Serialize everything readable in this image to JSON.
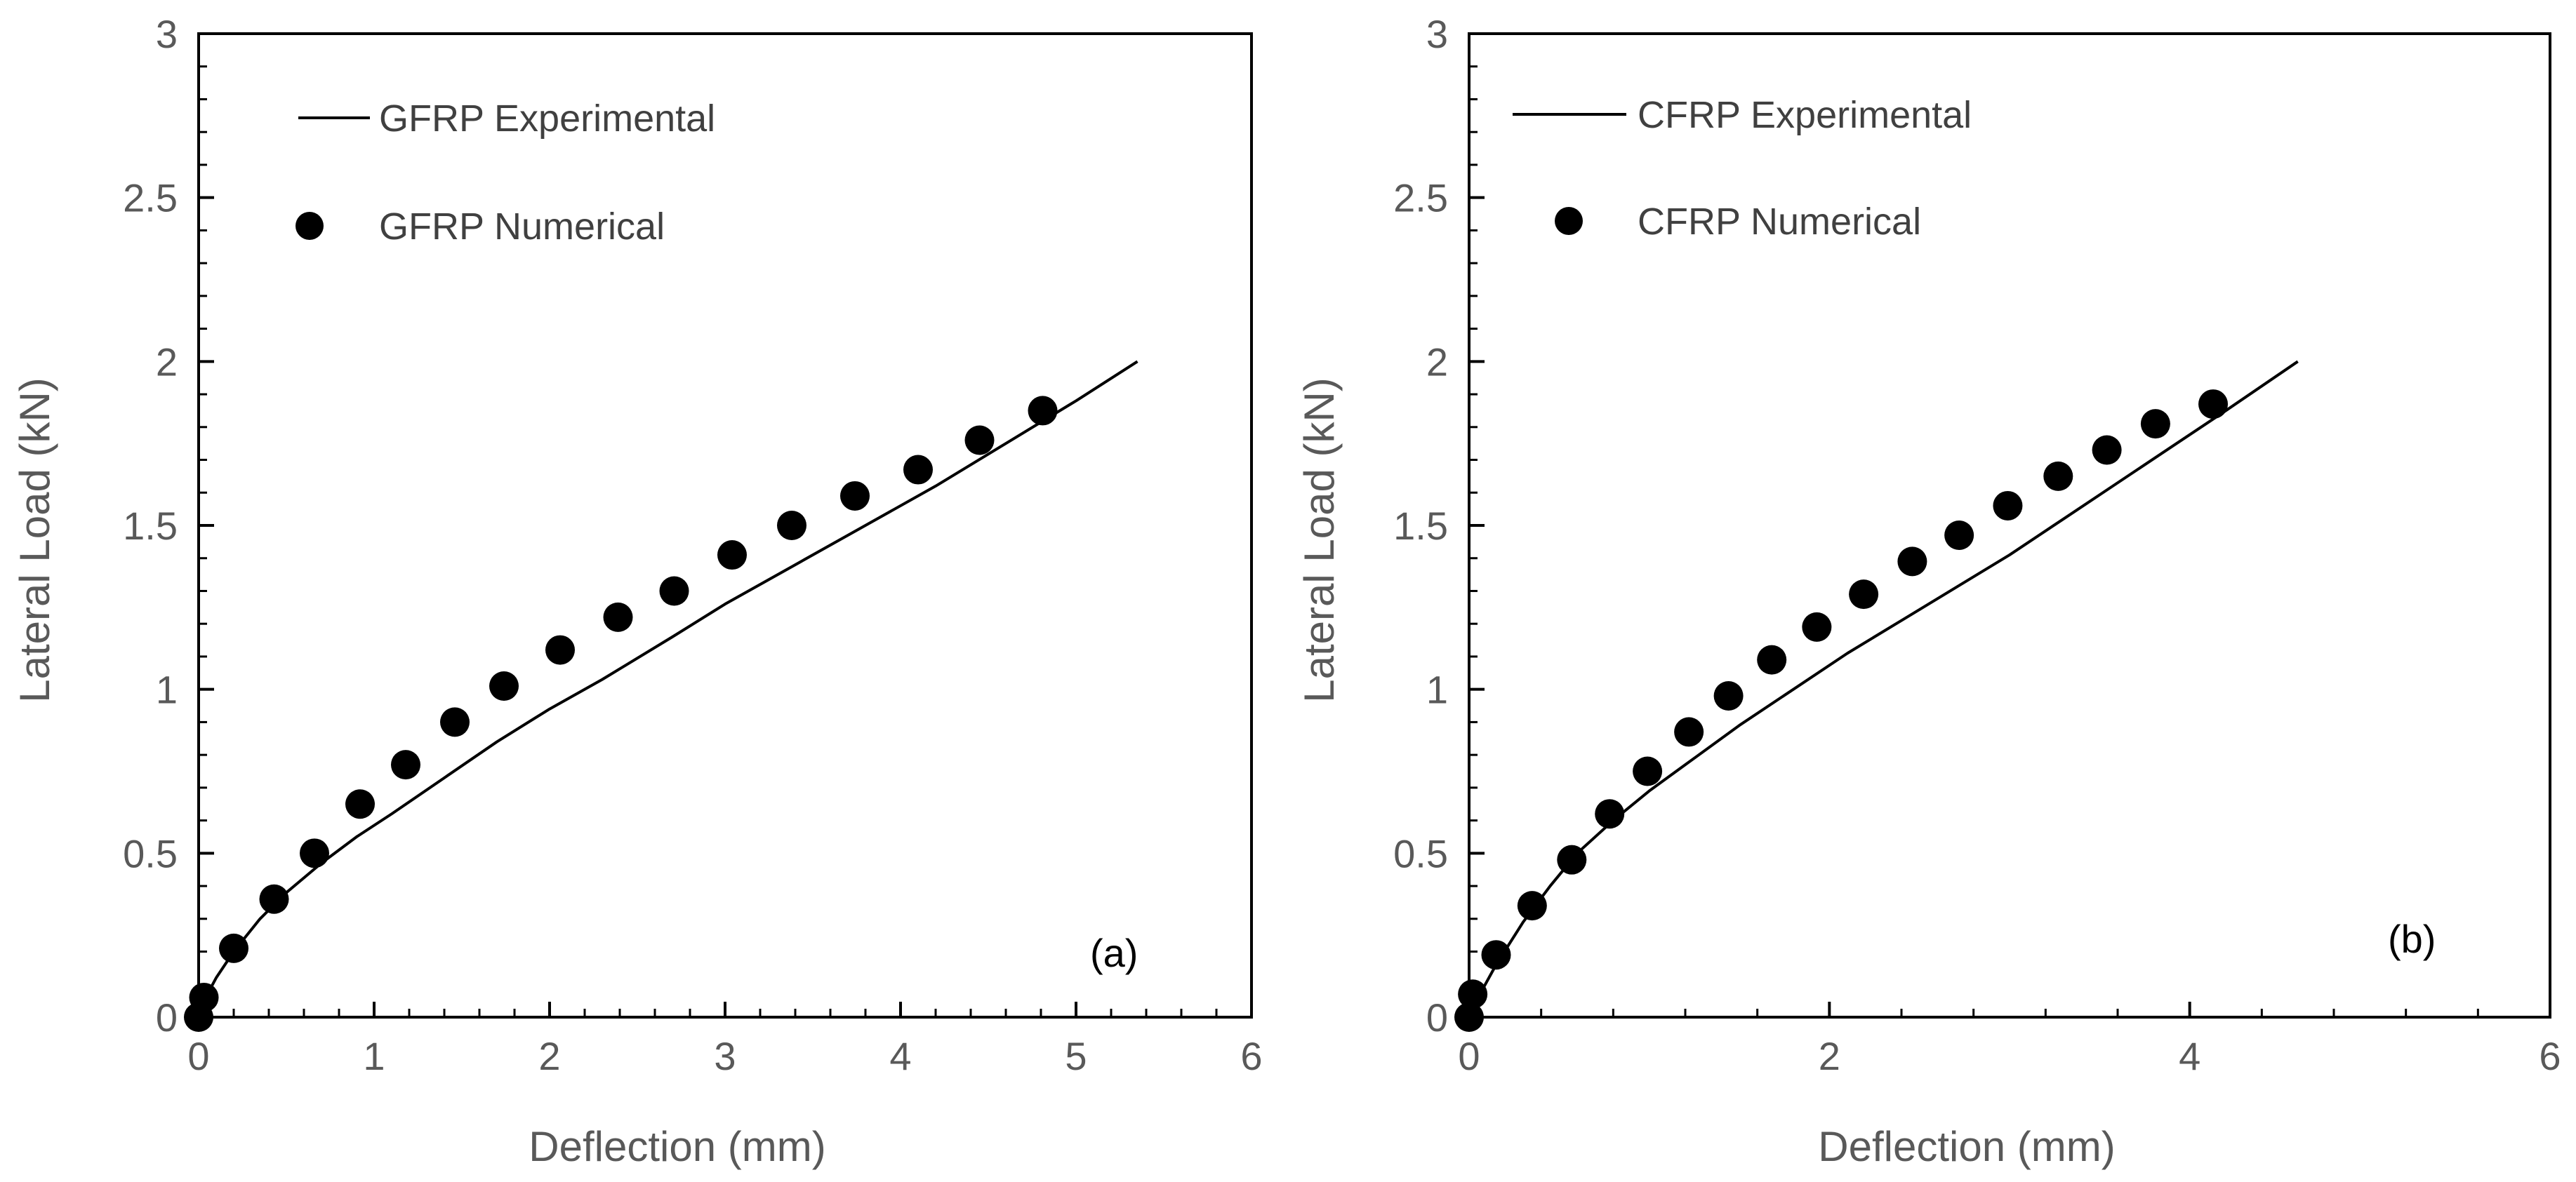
{
  "chart_data": [
    {
      "type": "scatter",
      "panel_label": "(a)",
      "xlabel": "Deflection (mm)",
      "ylabel": "Lateral Load (kN)",
      "xlim": [
        0,
        6
      ],
      "ylim": [
        0,
        3
      ],
      "x_ticks": [
        0,
        1,
        2,
        3,
        4,
        5,
        6
      ],
      "y_ticks": [
        0,
        0.5,
        1,
        1.5,
        2,
        2.5,
        3
      ],
      "x_tick_labels": [
        "0",
        "1",
        "2",
        "3",
        "4",
        "5",
        "6"
      ],
      "y_tick_labels": [
        "0",
        "0.5",
        "1",
        "1.5",
        "2",
        "2.5",
        "3"
      ],
      "legend_position": "top-left",
      "series": [
        {
          "name": "GFRP Experimental",
          "kind": "line",
          "color": "#000000",
          "x": [
            0,
            0.03,
            0.1,
            0.2,
            0.35,
            0.5,
            0.7,
            0.9,
            1.1,
            1.4,
            1.7,
            2.0,
            2.3,
            2.7,
            3.0,
            3.4,
            3.8,
            4.2,
            4.6,
            5.0,
            5.35
          ],
          "y": [
            0,
            0.05,
            0.12,
            0.2,
            0.3,
            0.38,
            0.47,
            0.55,
            0.62,
            0.73,
            0.84,
            0.94,
            1.03,
            1.16,
            1.26,
            1.38,
            1.5,
            1.62,
            1.75,
            1.88,
            2.0
          ]
        },
        {
          "name": "GFRP Numerical",
          "kind": "scatter",
          "color": "#000000",
          "x": [
            0,
            0.03,
            0.2,
            0.43,
            0.66,
            0.92,
            1.18,
            1.46,
            1.74,
            2.06,
            2.39,
            2.71,
            3.04,
            3.38,
            3.74,
            4.1,
            4.45,
            4.81
          ],
          "y": [
            0,
            0.06,
            0.21,
            0.36,
            0.5,
            0.65,
            0.77,
            0.9,
            1.01,
            1.12,
            1.22,
            1.3,
            1.41,
            1.5,
            1.59,
            1.67,
            1.76,
            1.85
          ]
        }
      ]
    },
    {
      "type": "scatter",
      "panel_label": "(b)",
      "xlabel": "Deflection (mm)",
      "ylabel": "Lateral Load (kN)",
      "xlim": [
        0,
        6
      ],
      "ylim": [
        0,
        3
      ],
      "x_ticks": [
        0,
        2,
        4,
        6
      ],
      "y_ticks": [
        0,
        0.5,
        1,
        1.5,
        2,
        2.5,
        3
      ],
      "x_tick_labels": [
        "0",
        "2",
        "4",
        "6"
      ],
      "y_tick_labels": [
        "0",
        "0.5",
        "1",
        "1.5",
        "2",
        "2.5",
        "3"
      ],
      "legend_position": "top-left",
      "series": [
        {
          "name": "CFRP Experimental",
          "kind": "line",
          "color": "#000000",
          "x": [
            0,
            0.05,
            0.15,
            0.3,
            0.45,
            0.6,
            0.8,
            1.0,
            1.2,
            1.5,
            1.8,
            2.1,
            2.4,
            2.7,
            3.0,
            3.3,
            3.6,
            3.9,
            4.2,
            4.6
          ],
          "y": [
            0,
            0.06,
            0.16,
            0.29,
            0.4,
            0.5,
            0.6,
            0.69,
            0.77,
            0.89,
            1.0,
            1.11,
            1.21,
            1.31,
            1.41,
            1.52,
            1.63,
            1.74,
            1.85,
            2.0
          ]
        },
        {
          "name": "CFRP Numerical",
          "kind": "scatter",
          "color": "#000000",
          "x": [
            0,
            0.02,
            0.15,
            0.35,
            0.57,
            0.78,
            0.99,
            1.22,
            1.44,
            1.68,
            1.93,
            2.19,
            2.46,
            2.72,
            2.99,
            3.27,
            3.54,
            3.81,
            4.13
          ],
          "y": [
            0,
            0.07,
            0.19,
            0.34,
            0.48,
            0.62,
            0.75,
            0.87,
            0.98,
            1.09,
            1.19,
            1.29,
            1.39,
            1.47,
            1.56,
            1.65,
            1.73,
            1.81,
            1.87
          ]
        }
      ]
    }
  ]
}
